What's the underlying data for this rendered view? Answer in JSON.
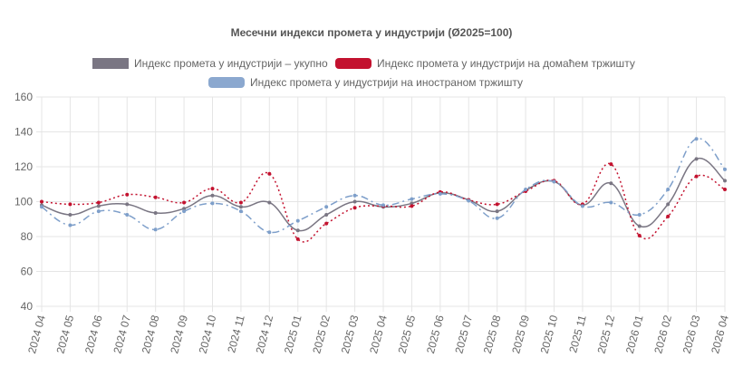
{
  "chart_data": {
    "type": "line",
    "title": "Месечни индекси промета у индустрији (Ø2025=100)",
    "xlabel": "",
    "ylabel": "",
    "ylim": [
      40,
      160
    ],
    "yticks": [
      40,
      60,
      80,
      100,
      120,
      140,
      160
    ],
    "grid": true,
    "legend_position": "top",
    "categories": [
      "2024 04",
      "2024 05",
      "2024 06",
      "2024 07",
      "2024 08",
      "2024 09",
      "2024 10",
      "2024 11",
      "2024 12",
      "2025 01",
      "2025 02",
      "2025 03",
      "2025 04",
      "2025 05",
      "2025 06",
      "2025 07",
      "2025 08",
      "2025 09",
      "2025 10",
      "2025 11",
      "2025 12",
      "2026 01",
      "2026 02",
      "2026 03",
      "2026 04"
    ],
    "series": [
      {
        "name": "Индекс промета у индустрији – укупно",
        "color": "#7a7683",
        "dash": "solid",
        "values": [
          98,
          92.5,
          97.5,
          98.5,
          93.5,
          96,
          103.5,
          97,
          99.5,
          83.5,
          92.5,
          100,
          97,
          99,
          105,
          101,
          94.5,
          106.5,
          111.5,
          98,
          110.5,
          86,
          98.5,
          124.5,
          112
        ]
      },
      {
        "name": "Индекс промета у индустрији на домаћем тржишту",
        "color": "#c3122f",
        "dash": "dotted",
        "values": [
          100,
          98.5,
          99.5,
          104,
          102.5,
          99.5,
          107.5,
          99.5,
          116,
          78.5,
          87.5,
          96.5,
          97.5,
          97.5,
          105.5,
          101,
          98.5,
          106,
          112,
          98.5,
          121.5,
          80.5,
          91.5,
          114.5,
          107
        ]
      },
      {
        "name": "Индекс промета у индустрији на иностраном тржишту",
        "color": "#7e9fca",
        "dash": "dashdot",
        "values": [
          97,
          86.5,
          94.5,
          92.5,
          84,
          94.5,
          99,
          94.5,
          82.5,
          89,
          97,
          103.5,
          98,
          101.5,
          104.5,
          100.5,
          90.5,
          107,
          111.5,
          97.5,
          99.5,
          92.5,
          107,
          136,
          118.5
        ]
      }
    ]
  }
}
